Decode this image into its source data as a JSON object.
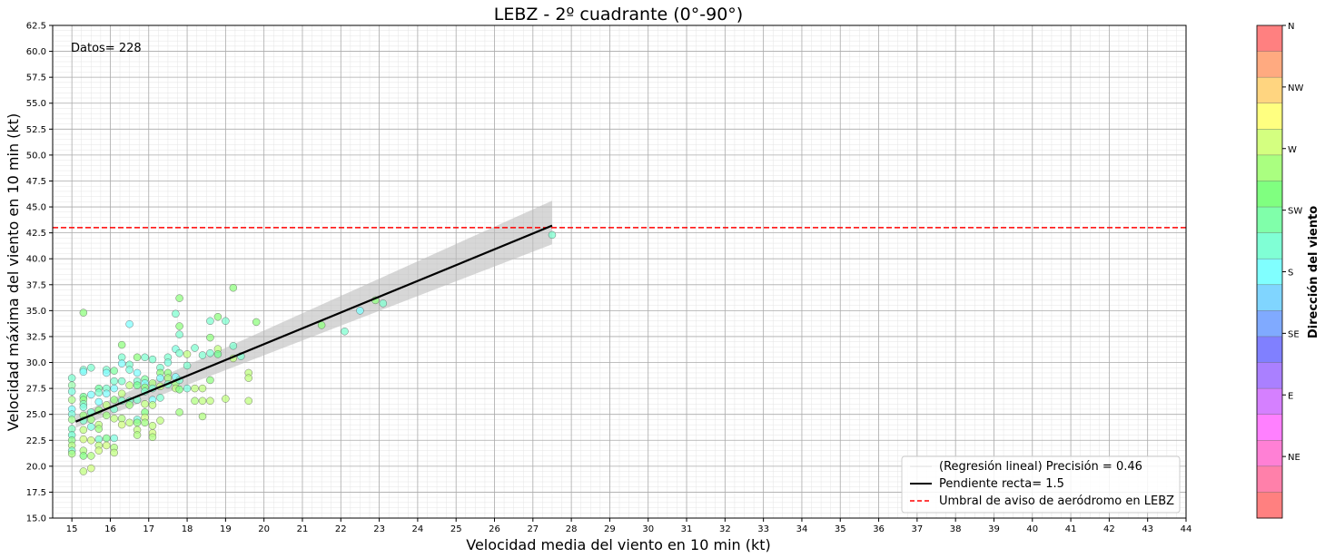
{
  "chart_data": {
    "type": "scatter",
    "title": "LEBZ - 2º cuadrante (0°-90°)",
    "xlabel": "Velocidad media del viento en 10 min (kt)",
    "ylabel": "Velocidad máxima del viento en 10 min (kt)",
    "xlim": [
      14.5,
      44
    ],
    "ylim": [
      15,
      62.5
    ],
    "x_ticks": [
      "15",
      "16",
      "17",
      "18",
      "19",
      "20",
      "21",
      "22",
      "23",
      "24",
      "25",
      "26",
      "27",
      "28",
      "29",
      "30",
      "31",
      "32",
      "33",
      "34",
      "35",
      "36",
      "37",
      "38",
      "39",
      "40",
      "41",
      "42",
      "43",
      "44"
    ],
    "y_ticks": [
      "15.0",
      "17.5",
      "20.0",
      "22.5",
      "25.0",
      "27.5",
      "30.0",
      "32.5",
      "35.0",
      "37.5",
      "40.0",
      "42.5",
      "45.0",
      "47.5",
      "50.0",
      "52.5",
      "55.0",
      "57.5",
      "60.0",
      "62.5"
    ],
    "grid": true,
    "annotation": "Datos= 228",
    "threshold": {
      "y": 43,
      "label": "Umbral de aviso de aeródromo en LEBZ",
      "color": "#ff0000"
    },
    "regression": {
      "x": [
        15.1,
        27.5
      ],
      "y": [
        24.3,
        43.2
      ],
      "ci_upper": [
        24.9,
        45.6
      ],
      "ci_lower": [
        23.7,
        41.4
      ],
      "label_fit": "(Regresión lineal) Precisión = 0.46",
      "label_slope": "Pendiente recta= 1.5"
    },
    "legend_position": "bottom-right",
    "colorbar": {
      "label": "Dirección del viento",
      "ticks": [
        "N",
        "NW",
        "W",
        "SW",
        "S",
        "SE",
        "E",
        "NE"
      ],
      "colors": [
        "#ff8080",
        "#ffaa80",
        "#ffd580",
        "#ffff80",
        "#d4ff80",
        "#aaff80",
        "#80ff80",
        "#80ffaa",
        "#80ffd5",
        "#80ffff",
        "#80d5ff",
        "#80aaff",
        "#8080ff",
        "#aa80ff",
        "#d580ff",
        "#ff80ff",
        "#ff80d5",
        "#ff80aa",
        "#ff8080"
      ]
    },
    "points": [
      [
        15.0,
        28.5,
        "#7fffd0"
      ],
      [
        15.0,
        27.8,
        "#9cffb0"
      ],
      [
        15.0,
        27.2,
        "#7fffe0"
      ],
      [
        15.0,
        26.4,
        "#b0ff90"
      ],
      [
        15.0,
        25.5,
        "#80ffff"
      ],
      [
        15.0,
        25.0,
        "#80ffe0"
      ],
      [
        15.0,
        24.5,
        "#a0ff90"
      ],
      [
        15.0,
        23.6,
        "#80ffc0"
      ],
      [
        15.0,
        23.0,
        "#70ffd0"
      ],
      [
        15.0,
        22.5,
        "#90ff90"
      ],
      [
        15.0,
        22.0,
        "#b0ff80"
      ],
      [
        15.0,
        21.5,
        "#80ffd0"
      ],
      [
        15.0,
        21.2,
        "#a8ff80"
      ],
      [
        15.3,
        34.8,
        "#90ff80"
      ],
      [
        15.3,
        29.3,
        "#80ffd0"
      ],
      [
        15.3,
        29.1,
        "#80ffff"
      ],
      [
        15.3,
        26.7,
        "#70ff90"
      ],
      [
        15.3,
        26.4,
        "#90ff80"
      ],
      [
        15.3,
        26.0,
        "#80ffc0"
      ],
      [
        15.3,
        25.7,
        "#80ffe0"
      ],
      [
        15.3,
        24.9,
        "#a0ff80"
      ],
      [
        15.3,
        24.4,
        "#80ffd0"
      ],
      [
        15.3,
        23.5,
        "#c0ff80"
      ],
      [
        15.3,
        22.6,
        "#d0ff80"
      ],
      [
        15.3,
        21.5,
        "#b0ff80"
      ],
      [
        15.3,
        21.0,
        "#80ff80"
      ],
      [
        15.3,
        19.5,
        "#c0ff80"
      ],
      [
        15.5,
        29.5,
        "#80ffd0"
      ],
      [
        15.5,
        26.9,
        "#80ffff"
      ],
      [
        15.5,
        25.2,
        "#80ffd0"
      ],
      [
        15.5,
        24.5,
        "#a0ff80"
      ],
      [
        15.5,
        23.8,
        "#80ffe0"
      ],
      [
        15.5,
        22.5,
        "#d0ff80"
      ],
      [
        15.5,
        21.0,
        "#b0ff80"
      ],
      [
        15.5,
        19.8,
        "#d0ff80"
      ],
      [
        15.7,
        27.5,
        "#70ffa0"
      ],
      [
        15.7,
        27.1,
        "#80ffd0"
      ],
      [
        15.7,
        26.2,
        "#80ffff"
      ],
      [
        15.7,
        25.4,
        "#90ff80"
      ],
      [
        15.7,
        24.0,
        "#c0ff80"
      ],
      [
        15.7,
        23.6,
        "#a0ff80"
      ],
      [
        15.7,
        22.6,
        "#80ffd0"
      ],
      [
        15.7,
        22.0,
        "#c0ff80"
      ],
      [
        15.7,
        21.5,
        "#d0ff80"
      ],
      [
        15.9,
        29.3,
        "#80ffd0"
      ],
      [
        15.9,
        29.0,
        "#80ffff"
      ],
      [
        15.9,
        27.5,
        "#80ffd0"
      ],
      [
        15.9,
        27.0,
        "#80ffff"
      ],
      [
        15.9,
        25.9,
        "#c0ff80"
      ],
      [
        15.9,
        24.9,
        "#a0ff80"
      ],
      [
        15.9,
        22.7,
        "#80ff90"
      ],
      [
        15.9,
        22.0,
        "#d0ff80"
      ],
      [
        16.1,
        29.2,
        "#80ffa0"
      ],
      [
        16.1,
        28.2,
        "#80ffd0"
      ],
      [
        16.1,
        27.5,
        "#80ffff"
      ],
      [
        16.1,
        26.4,
        "#90ff80"
      ],
      [
        16.1,
        25.5,
        "#80ffd0"
      ],
      [
        16.1,
        24.6,
        "#c0ff80"
      ],
      [
        16.1,
        22.7,
        "#80ffe0"
      ],
      [
        16.1,
        21.8,
        "#b0ff80"
      ],
      [
        16.1,
        21.3,
        "#c0ff80"
      ],
      [
        16.3,
        31.7,
        "#90ff80"
      ],
      [
        16.3,
        30.5,
        "#80ffd0"
      ],
      [
        16.3,
        29.9,
        "#80ffff"
      ],
      [
        16.3,
        28.2,
        "#80ffd0"
      ],
      [
        16.3,
        27.0,
        "#c0ff80"
      ],
      [
        16.3,
        26.3,
        "#80ffd0"
      ],
      [
        16.3,
        24.6,
        "#b0ff80"
      ],
      [
        16.3,
        24.0,
        "#d0ff80"
      ],
      [
        16.5,
        33.7,
        "#80ffff"
      ],
      [
        16.5,
        29.8,
        "#80ffd0"
      ],
      [
        16.5,
        29.3,
        "#80ffe0"
      ],
      [
        16.5,
        27.8,
        "#c0ff80"
      ],
      [
        16.5,
        26.3,
        "#80ffd0"
      ],
      [
        16.5,
        25.9,
        "#a0ff80"
      ],
      [
        16.5,
        24.2,
        "#c0ff80"
      ],
      [
        16.7,
        30.5,
        "#90ff80"
      ],
      [
        16.7,
        29.0,
        "#80ffff"
      ],
      [
        16.7,
        28.2,
        "#80ffd0"
      ],
      [
        16.7,
        27.8,
        "#70ff90"
      ],
      [
        16.7,
        26.4,
        "#80ffd0"
      ],
      [
        16.7,
        24.5,
        "#80ffe0"
      ],
      [
        16.7,
        24.2,
        "#90ff80"
      ],
      [
        16.7,
        23.5,
        "#c0ff80"
      ],
      [
        16.7,
        23.0,
        "#b0ff80"
      ],
      [
        16.9,
        30.5,
        "#80ffd0"
      ],
      [
        16.9,
        28.4,
        "#80ffa0"
      ],
      [
        16.9,
        28.0,
        "#80ffff"
      ],
      [
        16.9,
        27.6,
        "#90ff80"
      ],
      [
        16.9,
        27.2,
        "#80ffd0"
      ],
      [
        16.9,
        26.0,
        "#c0ff80"
      ],
      [
        16.9,
        25.2,
        "#80ff80"
      ],
      [
        16.9,
        24.7,
        "#d0ff80"
      ],
      [
        16.9,
        24.2,
        "#a0ff80"
      ],
      [
        17.1,
        30.3,
        "#80ffd0"
      ],
      [
        17.1,
        28.0,
        "#b0ff80"
      ],
      [
        17.1,
        27.5,
        "#80ffd0"
      ],
      [
        17.1,
        26.4,
        "#80ffff"
      ],
      [
        17.1,
        25.9,
        "#c0ff80"
      ],
      [
        17.1,
        23.9,
        "#c0ff80"
      ],
      [
        17.1,
        23.2,
        "#d0ff80"
      ],
      [
        17.1,
        22.8,
        "#b0ff80"
      ],
      [
        17.3,
        29.5,
        "#80ffd0"
      ],
      [
        17.3,
        29.0,
        "#90ff80"
      ],
      [
        17.3,
        28.5,
        "#80ffff"
      ],
      [
        17.3,
        27.7,
        "#c0ff80"
      ],
      [
        17.3,
        26.6,
        "#80ffd0"
      ],
      [
        17.3,
        24.4,
        "#c0ff80"
      ],
      [
        17.5,
        30.5,
        "#80ffd0"
      ],
      [
        17.5,
        30.0,
        "#80ffe0"
      ],
      [
        17.5,
        29.0,
        "#90ff80"
      ],
      [
        17.5,
        28.5,
        "#b0ff80"
      ],
      [
        17.5,
        27.9,
        "#80ffd0"
      ],
      [
        17.7,
        34.7,
        "#80ffd0"
      ],
      [
        17.7,
        31.3,
        "#80ffe0"
      ],
      [
        17.7,
        28.6,
        "#80ffff"
      ],
      [
        17.7,
        28.0,
        "#a0ff80"
      ],
      [
        17.7,
        27.5,
        "#c0ff80"
      ],
      [
        17.8,
        36.2,
        "#90ff80"
      ],
      [
        17.8,
        33.5,
        "#90ff80"
      ],
      [
        17.8,
        32.7,
        "#80ffd0"
      ],
      [
        17.8,
        30.9,
        "#80ffd0"
      ],
      [
        17.8,
        28.3,
        "#80ffd0"
      ],
      [
        17.8,
        27.4,
        "#80ff80"
      ],
      [
        17.8,
        25.2,
        "#a0ff80"
      ],
      [
        18.0,
        30.8,
        "#c0ff80"
      ],
      [
        18.0,
        29.7,
        "#80ffd0"
      ],
      [
        18.0,
        27.5,
        "#80ffe0"
      ],
      [
        18.2,
        31.4,
        "#80ffd0"
      ],
      [
        18.2,
        27.5,
        "#c0ff80"
      ],
      [
        18.2,
        26.3,
        "#b0ff80"
      ],
      [
        18.4,
        30.7,
        "#80ffd0"
      ],
      [
        18.4,
        27.5,
        "#c0ff80"
      ],
      [
        18.4,
        26.3,
        "#c0ff80"
      ],
      [
        18.4,
        24.8,
        "#b0ff80"
      ],
      [
        18.6,
        34.0,
        "#80ffd0"
      ],
      [
        18.6,
        32.4,
        "#90ff80"
      ],
      [
        18.6,
        30.9,
        "#80ffd0"
      ],
      [
        18.6,
        28.3,
        "#90ff80"
      ],
      [
        18.6,
        26.3,
        "#c0ff80"
      ],
      [
        18.8,
        34.4,
        "#90ff80"
      ],
      [
        18.8,
        31.3,
        "#c0ff80"
      ],
      [
        18.8,
        30.8,
        "#70ff90"
      ],
      [
        19.0,
        34.0,
        "#80ffd0"
      ],
      [
        19.0,
        26.5,
        "#c0ff80"
      ],
      [
        19.2,
        37.2,
        "#90ff80"
      ],
      [
        19.2,
        31.6,
        "#80ffd0"
      ],
      [
        19.2,
        30.4,
        "#c0ff80"
      ],
      [
        19.4,
        30.6,
        "#80ffd0"
      ],
      [
        19.6,
        29.0,
        "#c0ff80"
      ],
      [
        19.6,
        28.5,
        "#c0ff80"
      ],
      [
        19.6,
        26.3,
        "#c0ff80"
      ],
      [
        19.8,
        33.9,
        "#90ff80"
      ],
      [
        21.5,
        33.6,
        "#90ff80"
      ],
      [
        22.1,
        33.0,
        "#80ffd0"
      ],
      [
        22.5,
        35.0,
        "#80ffff"
      ],
      [
        22.9,
        36.0,
        "#90ff80"
      ],
      [
        23.1,
        35.7,
        "#80ffd0"
      ],
      [
        27.5,
        42.3,
        "#80ffd0"
      ]
    ]
  }
}
